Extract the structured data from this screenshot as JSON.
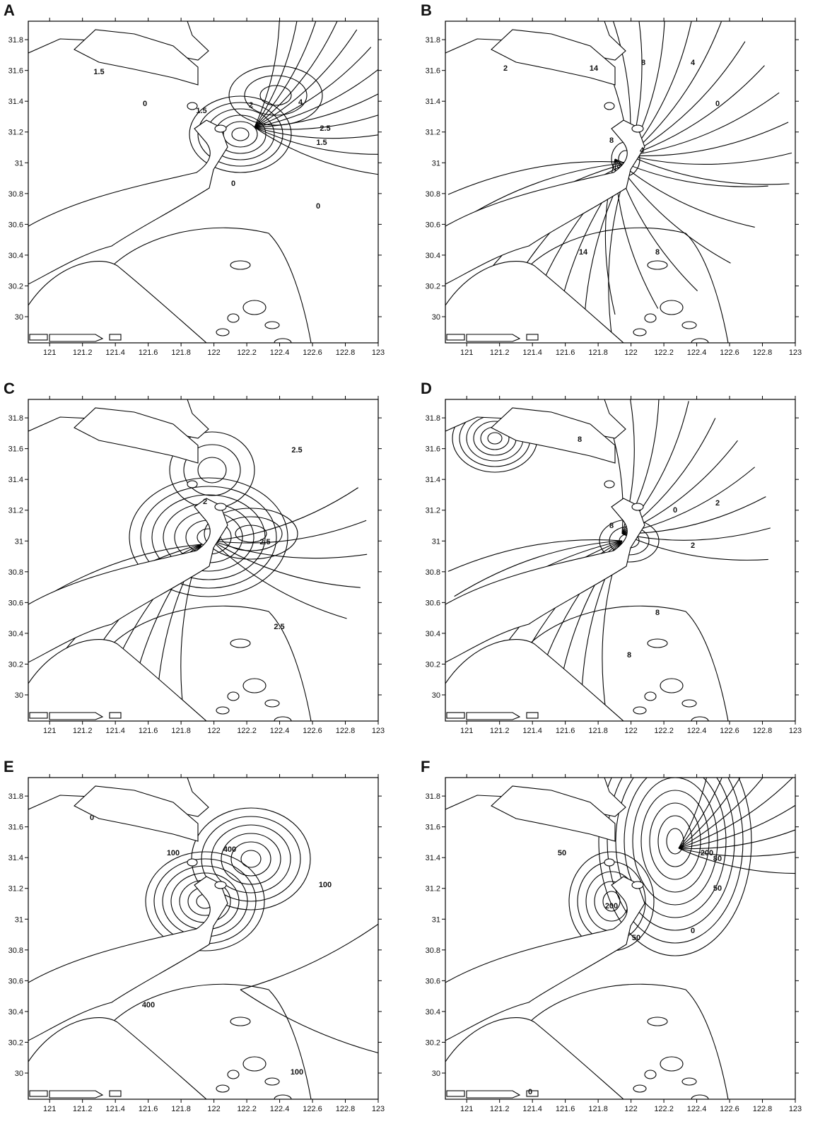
{
  "panels": [
    {
      "label": "A",
      "xlim": [
        120.87,
        123
      ],
      "ylim": [
        29.83,
        31.92
      ],
      "xticks": [
        121,
        121.2,
        121.4,
        121.6,
        121.8,
        122,
        122.2,
        122.4,
        122.6,
        122.8,
        123
      ],
      "yticks": [
        30,
        30.2,
        30.4,
        30.6,
        30.8,
        31,
        31.2,
        31.4,
        31.6,
        31.8
      ],
      "contour_labels": [
        "1.5",
        "0",
        "1.5",
        "2",
        "4",
        "2.5",
        "1.5",
        "0",
        "0"
      ]
    },
    {
      "label": "B",
      "xlim": [
        120.87,
        123
      ],
      "ylim": [
        29.83,
        31.92
      ],
      "xticks": [
        121,
        121.2,
        121.4,
        121.6,
        121.8,
        122,
        122.2,
        122.4,
        122.6,
        122.8,
        123
      ],
      "yticks": [
        30,
        30.2,
        30.4,
        30.6,
        30.8,
        31,
        31.2,
        31.4,
        31.6,
        31.8
      ],
      "contour_labels": [
        "2",
        "14",
        "8",
        "4",
        "0",
        "8",
        "4",
        "14",
        "8"
      ]
    },
    {
      "label": "C",
      "xlim": [
        120.87,
        123
      ],
      "ylim": [
        29.83,
        31.92
      ],
      "xticks": [
        121,
        121.2,
        121.4,
        121.6,
        121.8,
        122,
        122.2,
        122.4,
        122.6,
        122.8,
        123
      ],
      "yticks": [
        30,
        30.2,
        30.4,
        30.6,
        30.8,
        31,
        31.2,
        31.4,
        31.6,
        31.8
      ],
      "contour_labels": [
        "2.5",
        "2",
        "2.5",
        "2.5"
      ]
    },
    {
      "label": "D",
      "xlim": [
        120.87,
        123
      ],
      "ylim": [
        29.83,
        31.92
      ],
      "xticks": [
        121,
        121.2,
        121.4,
        121.6,
        121.8,
        122,
        122.2,
        122.4,
        122.6,
        122.8,
        123
      ],
      "yticks": [
        30,
        30.2,
        30.4,
        30.6,
        30.8,
        31,
        31.2,
        31.4,
        31.6,
        31.8
      ],
      "contour_labels": [
        "8",
        "8",
        "0",
        "2",
        "8",
        "2",
        "8"
      ]
    },
    {
      "label": "E",
      "xlim": [
        120.87,
        123
      ],
      "ylim": [
        29.83,
        31.92
      ],
      "xticks": [
        121,
        121.2,
        121.4,
        121.6,
        121.8,
        122,
        122.2,
        122.4,
        122.6,
        122.8,
        123
      ],
      "yticks": [
        30,
        30.2,
        30.4,
        30.6,
        30.8,
        31,
        31.2,
        31.4,
        31.6,
        31.8
      ],
      "contour_labels": [
        "0",
        "100",
        "400",
        "100",
        "400",
        "100"
      ]
    },
    {
      "label": "F",
      "xlim": [
        120.87,
        123
      ],
      "ylim": [
        29.83,
        31.92
      ],
      "xticks": [
        121,
        121.2,
        121.4,
        121.6,
        121.8,
        122,
        122.2,
        122.4,
        122.6,
        122.8,
        123
      ],
      "yticks": [
        30,
        30.2,
        30.4,
        30.6,
        30.8,
        31,
        31.2,
        31.4,
        31.6,
        31.8
      ],
      "contour_labels": [
        "50",
        "200",
        "50",
        "200",
        "80",
        "50",
        "0",
        "0"
      ]
    }
  ]
}
